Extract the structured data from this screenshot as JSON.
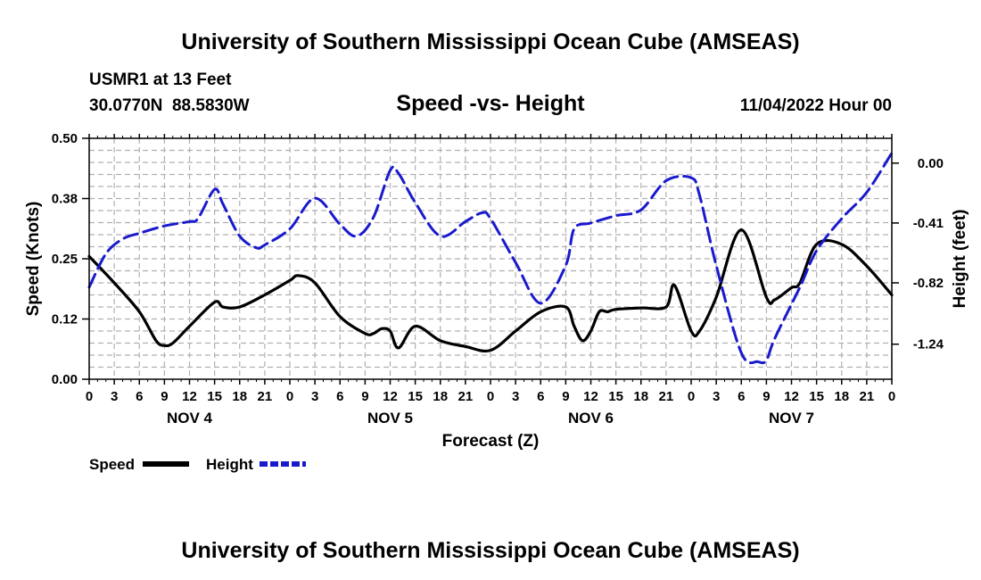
{
  "chart_data": {
    "type": "line",
    "title": "University of Southern Mississippi Ocean Cube (AMSEAS)",
    "station": "USMR1 at 13 Feet",
    "location": "30.0770N  88.5830W",
    "subtitle": "Speed -vs- Height",
    "datetime": "11/04/2022 Hour 00",
    "xlabel": "Forecast (Z)",
    "ylabel": "Speed (Knots)",
    "y2label": "Height (feet)",
    "x_tick_labels": [
      "0",
      "3",
      "6",
      "9",
      "12",
      "15",
      "18",
      "21",
      "0",
      "3",
      "6",
      "9",
      "12",
      "15",
      "18",
      "21",
      "0",
      "3",
      "6",
      "9",
      "12",
      "15",
      "18",
      "21",
      "0",
      "3",
      "6",
      "9",
      "12",
      "15",
      "18",
      "21",
      "0"
    ],
    "day_labels": [
      {
        "label": "NOV 4",
        "hour": 12
      },
      {
        "label": "NOV 5",
        "hour": 36
      },
      {
        "label": "NOV 6",
        "hour": 60
      },
      {
        "label": "NOV 7",
        "hour": 84
      }
    ],
    "x_range": [
      0,
      96
    ],
    "ylim": [
      0,
      0.5
    ],
    "yticks": [
      "0.00",
      "0.12",
      "0.25",
      "0.38",
      "0.50"
    ],
    "y2lim": [
      -1.48,
      0.17
    ],
    "y2ticks": [
      "0.00",
      "-0.41",
      "-0.82",
      "-1.24"
    ],
    "series": [
      {
        "name": "Speed",
        "axis": "left",
        "color": "#000000",
        "style": "solid",
        "x": [
          0,
          3,
          6,
          8,
          9,
          10,
          12,
          15,
          16,
          18,
          21,
          24,
          25,
          27,
          30,
          33,
          34,
          35,
          36,
          37,
          39,
          42,
          45,
          48,
          51,
          54,
          57,
          58,
          59,
          60,
          61,
          62,
          63,
          66,
          69,
          70,
          72,
          73,
          75,
          78,
          81,
          82,
          84,
          85,
          87,
          90,
          93,
          96
        ],
        "values": [
          0.255,
          0.2,
          0.14,
          0.08,
          0.07,
          0.075,
          0.11,
          0.16,
          0.15,
          0.15,
          0.175,
          0.205,
          0.215,
          0.2,
          0.13,
          0.095,
          0.095,
          0.105,
          0.1,
          0.065,
          0.11,
          0.08,
          0.068,
          0.06,
          0.1,
          0.14,
          0.15,
          0.11,
          0.08,
          0.1,
          0.14,
          0.14,
          0.145,
          0.148,
          0.15,
          0.195,
          0.1,
          0.1,
          0.17,
          0.31,
          0.17,
          0.165,
          0.19,
          0.2,
          0.28,
          0.28,
          0.235,
          0.175
        ]
      },
      {
        "name": "Height",
        "axis": "right",
        "color": "#1a1acd",
        "style": "dashed",
        "x": [
          0,
          2,
          4,
          6,
          9,
          12,
          13,
          15,
          16,
          18,
          20,
          21,
          24,
          27,
          30,
          32,
          34,
          36,
          37,
          39,
          42,
          45,
          47,
          48,
          51,
          54,
          57,
          58,
          60,
          63,
          66,
          69,
          72,
          73,
          75,
          78,
          80,
          81,
          82,
          85,
          87,
          90,
          93,
          96
        ],
        "values": [
          -0.85,
          -0.62,
          -0.52,
          -0.48,
          -0.43,
          -0.4,
          -0.38,
          -0.18,
          -0.28,
          -0.5,
          -0.58,
          -0.56,
          -0.45,
          -0.24,
          -0.42,
          -0.5,
          -0.37,
          -0.05,
          -0.07,
          -0.27,
          -0.5,
          -0.4,
          -0.34,
          -0.38,
          -0.68,
          -0.96,
          -0.7,
          -0.45,
          -0.41,
          -0.36,
          -0.32,
          -0.12,
          -0.1,
          -0.22,
          -0.7,
          -1.3,
          -1.36,
          -1.35,
          -1.2,
          -0.85,
          -0.6,
          -0.38,
          -0.2,
          0.07
        ]
      }
    ],
    "legend": [
      {
        "label": "Speed",
        "color": "#000000",
        "style": "solid"
      },
      {
        "label": "Height",
        "color": "#1a1acd",
        "style": "dashed"
      }
    ],
    "footer_title": "University of Southern Mississippi Ocean Cube (AMSEAS)",
    "grid": true
  }
}
